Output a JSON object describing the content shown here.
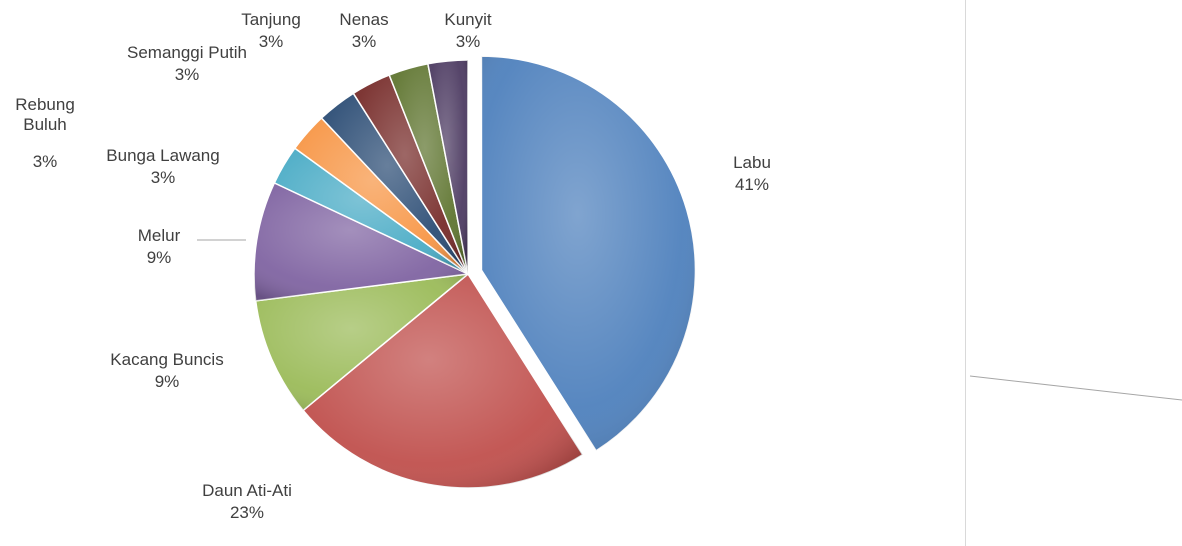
{
  "chart_data": {
    "type": "pie",
    "title": "",
    "exploded": [
      "Labu"
    ],
    "slices": [
      {
        "label": "Labu",
        "value": 41,
        "percent_label": "41%",
        "color": "#4f81bd"
      },
      {
        "label": "Daun Ati-Ati",
        "value": 23,
        "percent_label": "23%",
        "color": "#c0504d"
      },
      {
        "label": "Kacang Buncis",
        "value": 9,
        "percent_label": "9%",
        "color": "#9bbb59"
      },
      {
        "label": "Melur",
        "value": 9,
        "percent_label": "9%",
        "color": "#8064a2"
      },
      {
        "label": "Bunga Lawang",
        "value": 3,
        "percent_label": "3%",
        "color": "#4bacc6"
      },
      {
        "label": "Rebung Buluh",
        "value": 3,
        "percent_label": "3%",
        "color": "#f79646"
      },
      {
        "label": "Semanggi Putih",
        "value": 3,
        "percent_label": "3%",
        "color": "#2c4d75"
      },
      {
        "label": "Tanjung",
        "value": 3,
        "percent_label": "3%",
        "color": "#772c2a"
      },
      {
        "label": "Nenas",
        "value": 3,
        "percent_label": "3%",
        "color": "#5f7530"
      },
      {
        "label": "Kunyit",
        "value": 3,
        "percent_label": "3%",
        "color": "#4d3b62"
      }
    ]
  }
}
